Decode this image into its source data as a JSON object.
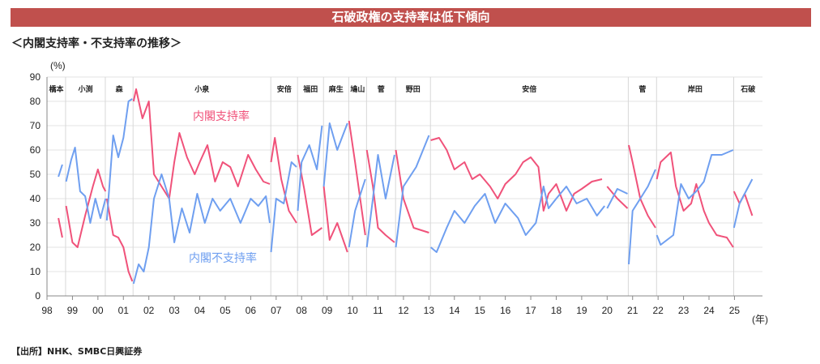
{
  "header": {
    "title": "石破政権の支持率は低下傾向"
  },
  "subtitle": "＜内閣支持率・不支持率の推移＞",
  "source": "【出所】NHK、SMBC日興証券",
  "chart_data": {
    "type": "line",
    "y_unit_label": "(%)",
    "x_unit_label": "(年)",
    "ylim": [
      0,
      90
    ],
    "yticks": [
      0,
      10,
      20,
      30,
      40,
      50,
      60,
      70,
      80,
      90
    ],
    "xlim": [
      1998,
      2026.1
    ],
    "xtick_labels": [
      "98",
      "99",
      "00",
      "01",
      "02",
      "03",
      "04",
      "05",
      "06",
      "07",
      "08",
      "09",
      "10",
      "11",
      "12",
      "13",
      "14",
      "15",
      "16",
      "17",
      "18",
      "19",
      "20",
      "21",
      "22",
      "23",
      "24",
      "25"
    ],
    "grid": true,
    "eras": [
      {
        "name": "橋本",
        "start": 1998.0,
        "end": 1998.73
      },
      {
        "name": "小渕",
        "start": 1998.73,
        "end": 2000.29
      },
      {
        "name": "森",
        "start": 2000.29,
        "end": 2001.38
      },
      {
        "name": "小泉",
        "start": 2001.38,
        "end": 2006.79
      },
      {
        "name": "安倍",
        "start": 2006.79,
        "end": 2007.84
      },
      {
        "name": "福田",
        "start": 2007.84,
        "end": 2008.86
      },
      {
        "name": "麻生",
        "start": 2008.86,
        "end": 2009.85
      },
      {
        "name": "鳩山",
        "start": 2009.85,
        "end": 2010.55
      },
      {
        "name": "菅",
        "start": 2010.55,
        "end": 2011.69
      },
      {
        "name": "野田",
        "start": 2011.69,
        "end": 2013.06
      },
      {
        "name": "安倍",
        "start": 2013.06,
        "end": 2020.83
      },
      {
        "name": "菅",
        "start": 2020.83,
        "end": 2021.94
      },
      {
        "name": "岸田",
        "start": 2021.94,
        "end": 2024.97
      },
      {
        "name": "石破",
        "start": 2024.97,
        "end": 2026.1
      }
    ],
    "series": [
      {
        "name": "内閣支持率",
        "color": "#f0527a",
        "segments": [
          [
            [
              1998.45,
              32
            ],
            [
              1998.6,
              24
            ]
          ],
          [
            [
              1998.75,
              37
            ],
            [
              1999.0,
              22
            ],
            [
              1999.2,
              20
            ],
            [
              1999.5,
              33
            ],
            [
              1999.8,
              45
            ],
            [
              2000.0,
              52
            ],
            [
              2000.2,
              45
            ],
            [
              2000.3,
              43
            ]
          ],
          [
            [
              2000.35,
              40
            ],
            [
              2000.6,
              25
            ],
            [
              2000.8,
              24
            ],
            [
              2001.0,
              20
            ],
            [
              2001.2,
              10
            ],
            [
              2001.35,
              6
            ]
          ],
          [
            [
              2001.4,
              80
            ],
            [
              2001.5,
              85
            ],
            [
              2001.75,
              73
            ],
            [
              2002.0,
              80
            ],
            [
              2002.2,
              50
            ],
            [
              2002.5,
              45
            ],
            [
              2002.8,
              40
            ],
            [
              2003.0,
              55
            ],
            [
              2003.2,
              67
            ],
            [
              2003.5,
              57
            ],
            [
              2003.8,
              50
            ],
            [
              2004.0,
              55
            ],
            [
              2004.3,
              62
            ],
            [
              2004.6,
              47
            ],
            [
              2004.9,
              55
            ],
            [
              2005.2,
              53
            ],
            [
              2005.5,
              45
            ],
            [
              2005.9,
              58
            ],
            [
              2006.2,
              52
            ],
            [
              2006.5,
              47
            ],
            [
              2006.75,
              46
            ]
          ],
          [
            [
              2006.8,
              55
            ],
            [
              2006.95,
              65
            ],
            [
              2007.2,
              48
            ],
            [
              2007.5,
              35
            ],
            [
              2007.8,
              30
            ]
          ],
          [
            [
              2007.85,
              58
            ],
            [
              2008.1,
              44
            ],
            [
              2008.4,
              25
            ],
            [
              2008.8,
              28
            ]
          ],
          [
            [
              2008.87,
              45
            ],
            [
              2009.1,
              23
            ],
            [
              2009.4,
              30
            ],
            [
              2009.8,
              18
            ]
          ],
          [
            [
              2009.86,
              72
            ],
            [
              2010.1,
              55
            ],
            [
              2010.5,
              25
            ]
          ],
          [
            [
              2010.56,
              60
            ],
            [
              2010.8,
              45
            ],
            [
              2011.0,
              28
            ],
            [
              2011.3,
              25
            ],
            [
              2011.65,
              22
            ]
          ],
          [
            [
              2011.7,
              60
            ],
            [
              2012.0,
              40
            ],
            [
              2012.4,
              28
            ],
            [
              2013.0,
              26
            ]
          ],
          [
            [
              2013.07,
              64
            ],
            [
              2013.4,
              65
            ],
            [
              2013.7,
              60
            ],
            [
              2014.0,
              52
            ],
            [
              2014.4,
              55
            ],
            [
              2014.7,
              48
            ],
            [
              2015.0,
              50
            ],
            [
              2015.4,
              45
            ],
            [
              2015.7,
              40
            ],
            [
              2016.0,
              46
            ],
            [
              2016.4,
              50
            ],
            [
              2016.7,
              55
            ],
            [
              2017.0,
              57
            ],
            [
              2017.3,
              53
            ],
            [
              2017.5,
              35
            ],
            [
              2017.7,
              42
            ],
            [
              2018.0,
              46
            ],
            [
              2018.4,
              35
            ],
            [
              2018.7,
              42
            ],
            [
              2019.0,
              44
            ],
            [
              2019.4,
              47
            ],
            [
              2019.8,
              48
            ]
          ],
          [
            [
              2020.0,
              45
            ],
            [
              2020.4,
              40
            ],
            [
              2020.8,
              36
            ]
          ],
          [
            [
              2020.85,
              62
            ],
            [
              2021.0,
              55
            ],
            [
              2021.3,
              40
            ],
            [
              2021.6,
              33
            ],
            [
              2021.9,
              28
            ]
          ],
          [
            [
              2021.95,
              48
            ],
            [
              2022.1,
              55
            ],
            [
              2022.5,
              59
            ],
            [
              2022.7,
              45
            ],
            [
              2023.0,
              35
            ],
            [
              2023.3,
              38
            ],
            [
              2023.5,
              46
            ],
            [
              2023.8,
              35
            ],
            [
              2024.0,
              30
            ],
            [
              2024.3,
              25
            ],
            [
              2024.7,
              24
            ],
            [
              2024.95,
              20
            ]
          ],
          [
            [
              2024.98,
              43
            ],
            [
              2025.2,
              38
            ],
            [
              2025.4,
              42
            ],
            [
              2025.7,
              33
            ]
          ]
        ]
      },
      {
        "name": "内閣不支持率",
        "color": "#6f9ff0",
        "segments": [
          [
            [
              1998.45,
              49
            ],
            [
              1998.6,
              54
            ]
          ],
          [
            [
              1998.75,
              47
            ],
            [
              1998.95,
              56
            ],
            [
              1999.1,
              61
            ],
            [
              1999.3,
              43
            ],
            [
              1999.5,
              41
            ],
            [
              1999.7,
              30
            ],
            [
              1999.9,
              40
            ],
            [
              2000.1,
              32
            ],
            [
              2000.3,
              40
            ]
          ],
          [
            [
              2000.35,
              31
            ],
            [
              2000.6,
              66
            ],
            [
              2000.8,
              57
            ],
            [
              2001.0,
              65
            ],
            [
              2001.2,
              80
            ],
            [
              2001.35,
              81
            ]
          ],
          [
            [
              2001.4,
              5
            ],
            [
              2001.6,
              13
            ],
            [
              2001.8,
              10
            ],
            [
              2002.0,
              20
            ],
            [
              2002.2,
              40
            ],
            [
              2002.5,
              50
            ],
            [
              2002.8,
              40
            ],
            [
              2003.0,
              22
            ],
            [
              2003.3,
              36
            ],
            [
              2003.6,
              26
            ],
            [
              2003.9,
              42
            ],
            [
              2004.2,
              30
            ],
            [
              2004.5,
              40
            ],
            [
              2004.8,
              35
            ],
            [
              2005.2,
              40
            ],
            [
              2005.6,
              30
            ],
            [
              2006.0,
              40
            ],
            [
              2006.3,
              37
            ],
            [
              2006.6,
              41
            ],
            [
              2006.75,
              30
            ]
          ],
          [
            [
              2006.8,
              18
            ],
            [
              2007.0,
              40
            ],
            [
              2007.3,
              38
            ],
            [
              2007.6,
              55
            ],
            [
              2007.8,
              53
            ]
          ],
          [
            [
              2007.85,
              35
            ],
            [
              2008.0,
              55
            ],
            [
              2008.3,
              62
            ],
            [
              2008.6,
              52
            ],
            [
              2008.8,
              70
            ]
          ],
          [
            [
              2008.87,
              45
            ],
            [
              2009.1,
              71
            ],
            [
              2009.4,
              60
            ],
            [
              2009.8,
              71
            ]
          ],
          [
            [
              2009.86,
              20
            ],
            [
              2010.1,
              35
            ],
            [
              2010.5,
              48
            ]
          ],
          [
            [
              2010.56,
              20
            ],
            [
              2010.8,
              40
            ],
            [
              2011.0,
              58
            ],
            [
              2011.3,
              40
            ],
            [
              2011.65,
              58
            ]
          ],
          [
            [
              2011.7,
              20
            ],
            [
              2012.0,
              45
            ],
            [
              2012.5,
              53
            ],
            [
              2013.0,
              66
            ]
          ],
          [
            [
              2013.07,
              20
            ],
            [
              2013.3,
              18
            ],
            [
              2013.7,
              28
            ],
            [
              2014.0,
              35
            ],
            [
              2014.4,
              30
            ],
            [
              2014.8,
              37
            ],
            [
              2015.2,
              42
            ],
            [
              2015.6,
              30
            ],
            [
              2016.0,
              38
            ],
            [
              2016.5,
              32
            ],
            [
              2016.8,
              25
            ],
            [
              2017.2,
              30
            ],
            [
              2017.5,
              45
            ],
            [
              2017.7,
              36
            ],
            [
              2018.0,
              40
            ],
            [
              2018.4,
              45
            ],
            [
              2018.8,
              38
            ],
            [
              2019.2,
              40
            ],
            [
              2019.6,
              33
            ],
            [
              2019.9,
              37
            ]
          ],
          [
            [
              2020.0,
              36
            ],
            [
              2020.4,
              44
            ],
            [
              2020.8,
              42
            ]
          ],
          [
            [
              2020.85,
              13
            ],
            [
              2021.0,
              35
            ],
            [
              2021.3,
              40
            ],
            [
              2021.6,
              45
            ],
            [
              2021.9,
              52
            ]
          ],
          [
            [
              2021.95,
              25
            ],
            [
              2022.1,
              21
            ],
            [
              2022.6,
              25
            ],
            [
              2022.9,
              46
            ],
            [
              2023.2,
              40
            ],
            [
              2023.5,
              43
            ],
            [
              2023.8,
              47
            ],
            [
              2024.1,
              58
            ],
            [
              2024.5,
              58
            ],
            [
              2024.95,
              60
            ]
          ],
          [
            [
              2024.98,
              28
            ],
            [
              2025.2,
              38
            ],
            [
              2025.7,
              48
            ]
          ]
        ]
      }
    ]
  }
}
